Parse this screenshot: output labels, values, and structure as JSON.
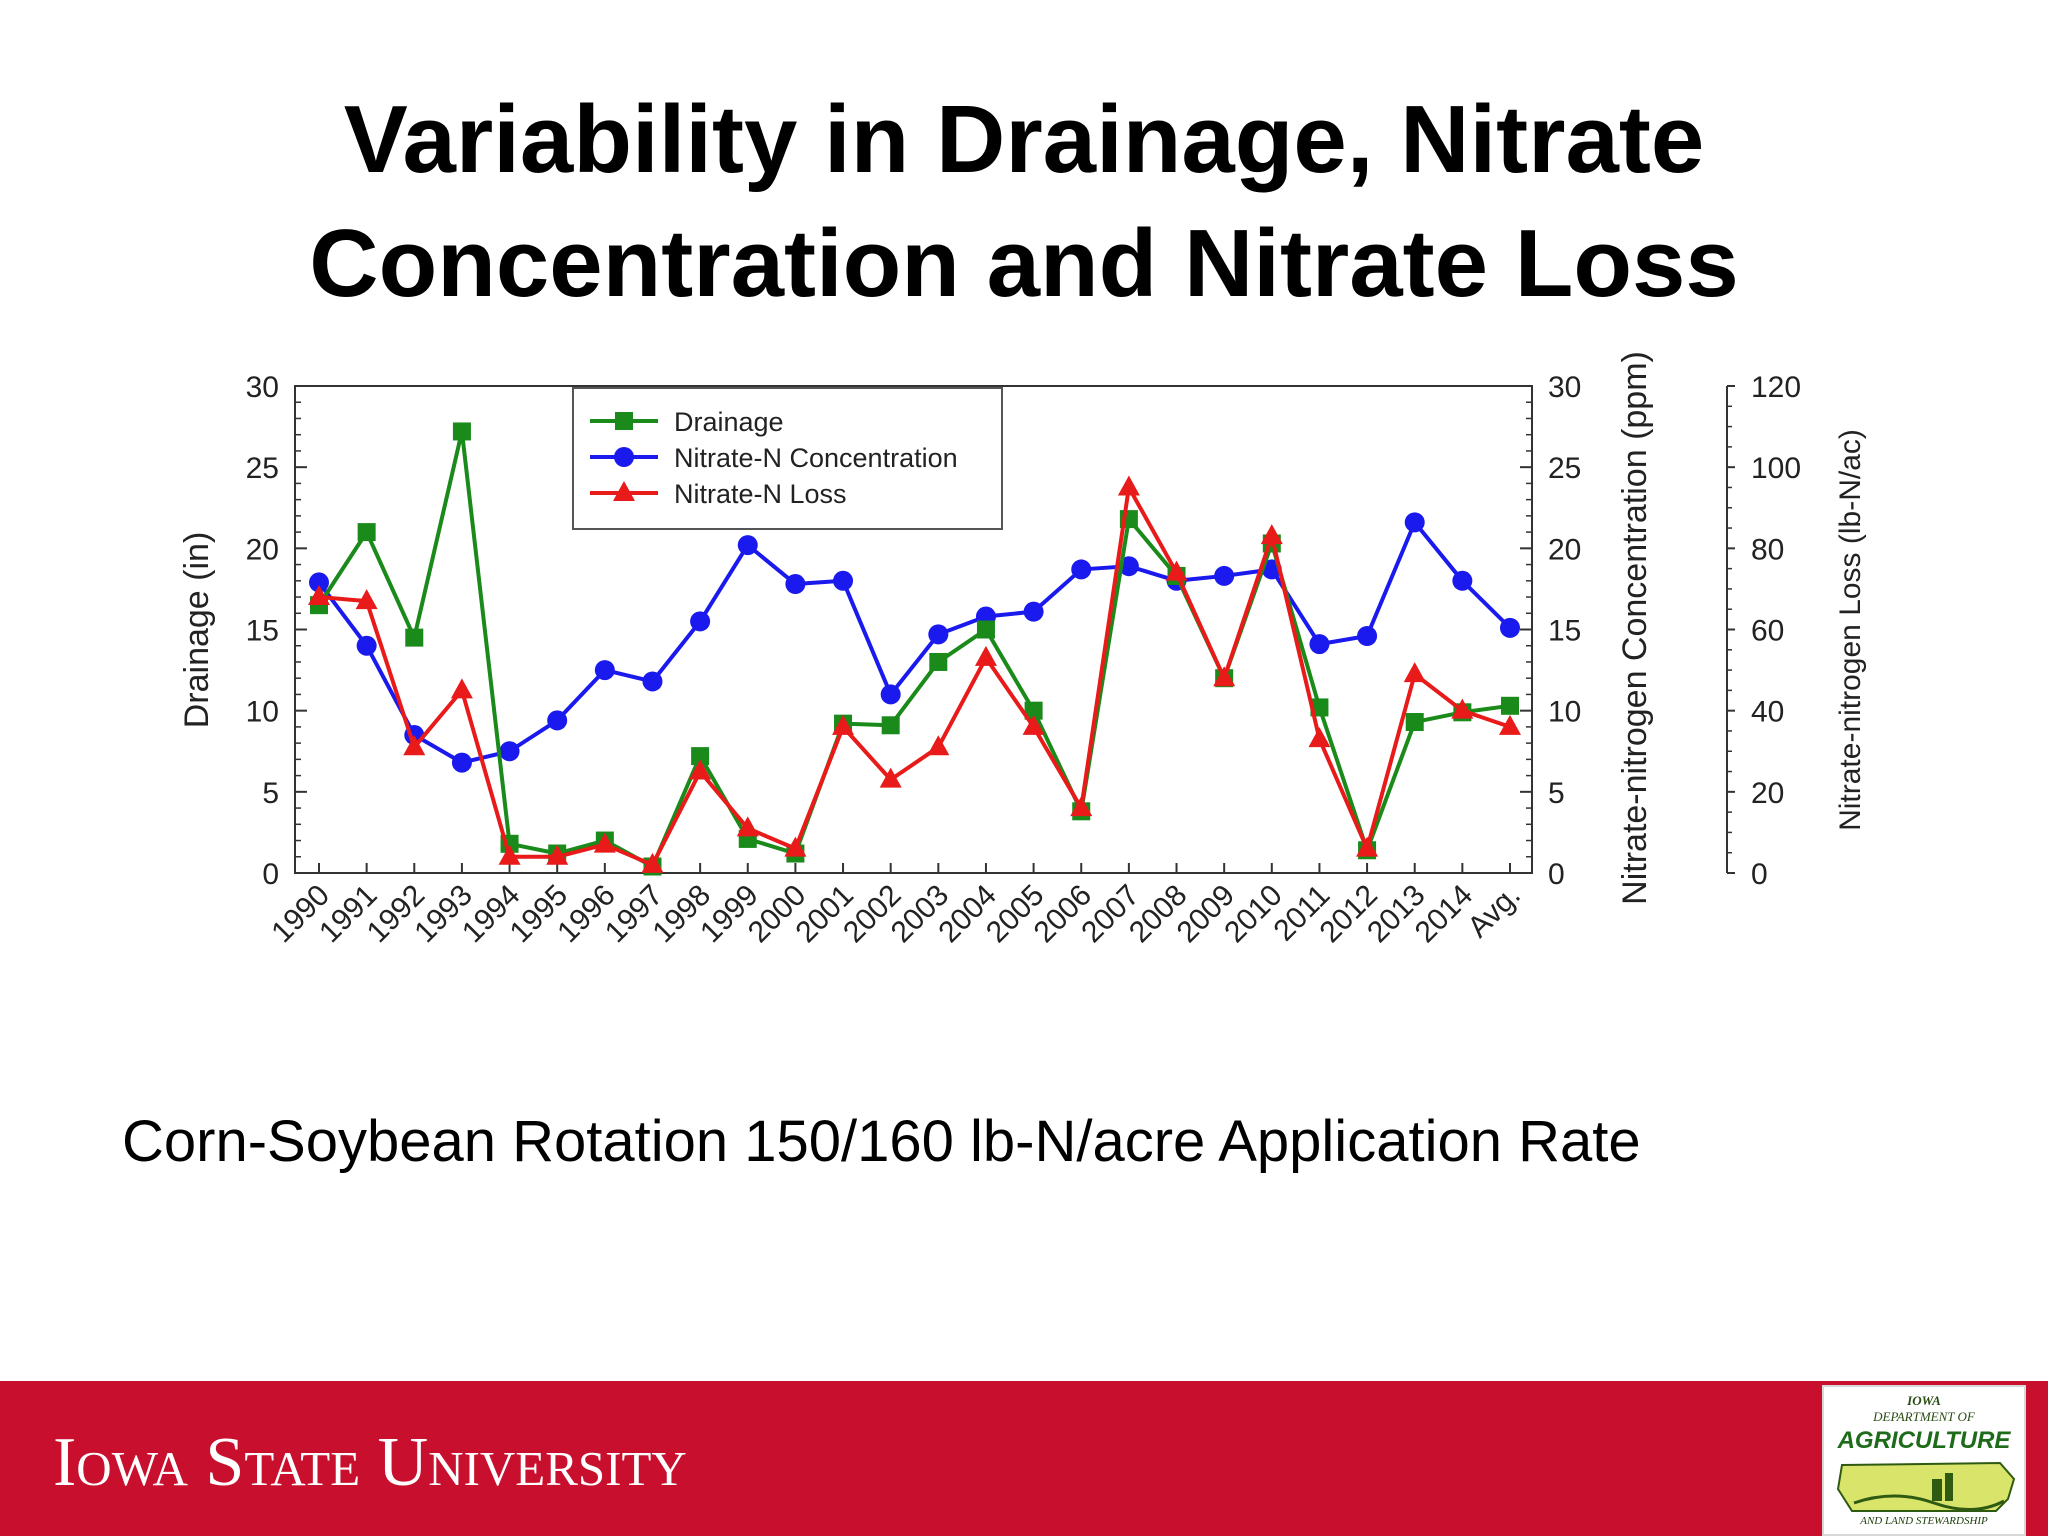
{
  "slide": {
    "title_line1": "Variability in Drainage, Nitrate",
    "title_line2": "Concentration and Nitrate Loss",
    "subtitle": "Corn-Soybean Rotation 150/160 lb-N/acre Application Rate"
  },
  "footer": {
    "university": "Iowa State University",
    "logo": {
      "line1": "IOWA",
      "line2": "DEPARTMENT OF",
      "line3": "AGRICULTURE",
      "line4": "AND LAND STEWARDSHIP"
    }
  },
  "colors": {
    "drainage": "#1a8a1a",
    "concentration": "#1a1aee",
    "loss": "#e81a1a",
    "footer": "#c8102e"
  },
  "chart_data": {
    "type": "line",
    "categories": [
      "1990",
      "1991",
      "1992",
      "1993",
      "1994",
      "1995",
      "1996",
      "1997",
      "1998",
      "1999",
      "2000",
      "2001",
      "2002",
      "2003",
      "2004",
      "2005",
      "2006",
      "2007",
      "2008",
      "2009",
      "2010",
      "2011",
      "2012",
      "2013",
      "2014",
      "Avg."
    ],
    "series": [
      {
        "name": "Drainage",
        "axis": "left",
        "marker": "square",
        "color": "#1a8a1a",
        "values": [
          16.5,
          21.0,
          14.5,
          27.2,
          1.8,
          1.2,
          2.0,
          0.4,
          7.2,
          2.1,
          1.2,
          9.2,
          9.1,
          13.0,
          15.0,
          10.0,
          3.8,
          21.8,
          18.3,
          12.0,
          20.3,
          10.2,
          1.4,
          9.3,
          9.9,
          10.3
        ]
      },
      {
        "name": "Nitrate-N Concentration",
        "axis": "middle",
        "marker": "circle",
        "color": "#1a1aee",
        "values": [
          17.9,
          14.0,
          8.5,
          6.8,
          7.5,
          9.4,
          12.5,
          11.8,
          15.5,
          20.2,
          17.8,
          18.0,
          11.0,
          14.7,
          15.8,
          16.1,
          18.7,
          18.9,
          18.0,
          18.3,
          18.7,
          14.1,
          14.6,
          21.6,
          18.0,
          15.1
        ]
      },
      {
        "name": "Nitrate-N Loss",
        "axis": "right",
        "marker": "triangle",
        "color": "#e81a1a",
        "values": [
          68,
          67,
          31,
          45,
          4,
          4,
          7,
          2,
          25,
          11,
          6,
          36,
          23,
          31,
          53,
          36,
          16,
          95,
          74,
          48,
          83,
          33,
          6,
          49,
          40,
          36
        ]
      }
    ],
    "axes": {
      "left": {
        "label": "Drainage (in)",
        "range": [
          0,
          30
        ],
        "ticks": [
          0,
          5,
          10,
          15,
          20,
          25,
          30
        ]
      },
      "middle": {
        "label": "Nitrate-nitrogen Concentration (ppm)",
        "range": [
          0,
          30
        ],
        "ticks": [
          0,
          5,
          10,
          15,
          20,
          25,
          30
        ]
      },
      "right": {
        "label": "Nitrate-nitrogen Loss (lb-N/ac)",
        "range": [
          0,
          120
        ],
        "ticks": [
          0,
          20,
          40,
          60,
          80,
          100,
          120
        ]
      }
    },
    "legend": "top-left",
    "grid": false
  }
}
